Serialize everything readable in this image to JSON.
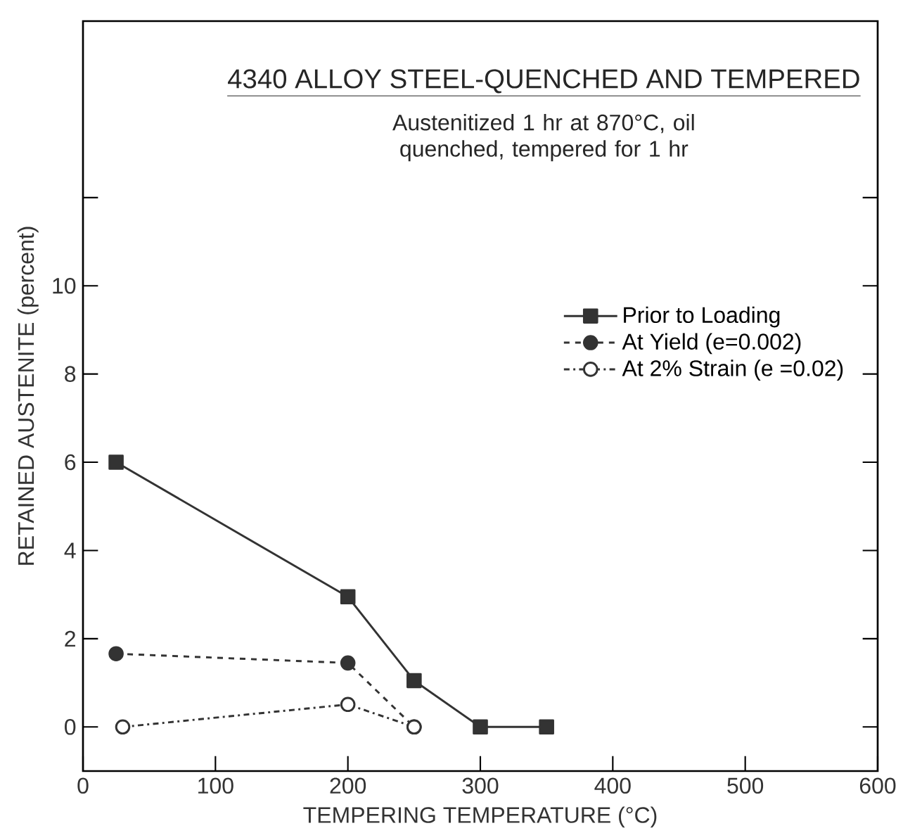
{
  "chart_data": {
    "type": "line",
    "title": "4340 ALLOY STEEL-QUENCHED AND TEMPERED",
    "subtitle": "Austenitized 1 hr at 870°C, oil quenched, tempered for 1 hr",
    "xlabel": "TEMPERING TEMPERATURE (°C)",
    "ylabel": "RETAINED AUSTENITE (percent)",
    "xlim": [
      0,
      600
    ],
    "xticks": [
      0,
      100,
      200,
      300,
      400,
      500,
      600
    ],
    "ylim": [
      -1,
      16
    ],
    "yticks": [
      0,
      2,
      4,
      6,
      8,
      10,
      {
        "value": 12,
        "label": null
      }
    ],
    "legend": "top right",
    "grid": false,
    "series": [
      {
        "name": "Prior to Loading",
        "color": "#333333",
        "marker": "square",
        "line_style": "solid",
        "x": [
          25,
          200,
          250,
          300,
          350
        ],
        "values": [
          6,
          2.95,
          1.05,
          0,
          0
        ]
      },
      {
        "name": "At Yield (e=0.002)",
        "color": "#333333",
        "marker": "circle",
        "line_style": "dashed",
        "x": [
          25,
          200,
          250
        ],
        "values": [
          1.66,
          1.45,
          0
        ]
      },
      {
        "name": "At 2% Strain (e =0.02)",
        "color": "#333333",
        "marker": "circle",
        "line_style": "dashdot",
        "x": [
          30,
          200,
          250
        ],
        "values": [
          0,
          0.51,
          0
        ]
      }
    ]
  }
}
